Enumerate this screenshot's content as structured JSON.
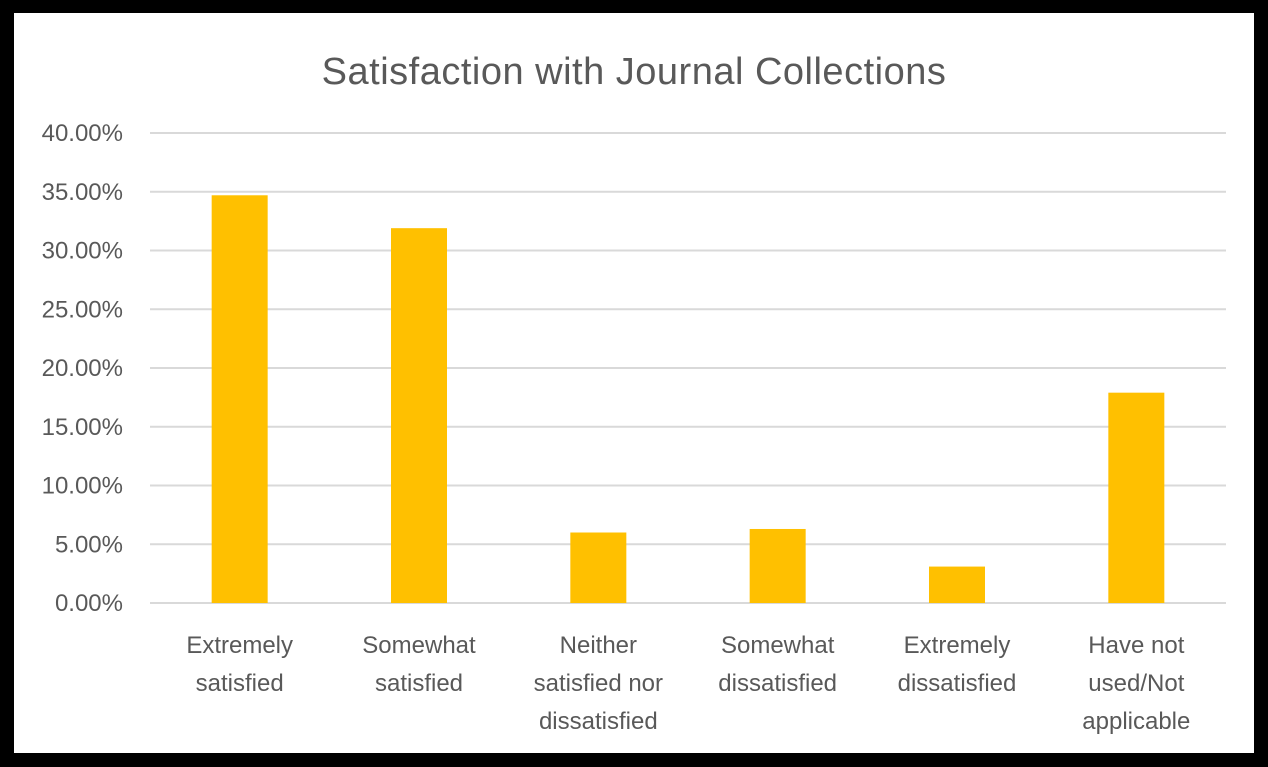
{
  "chart_data": {
    "type": "bar",
    "title": "Satisfaction with Journal Collections",
    "xlabel": "",
    "ylabel": "",
    "ylim": [
      0,
      0.4
    ],
    "yticks": [
      0,
      0.05,
      0.1,
      0.15,
      0.2,
      0.25,
      0.3,
      0.35,
      0.4
    ],
    "ytick_labels": [
      "0.00%",
      "5.00%",
      "10.00%",
      "15.00%",
      "20.00%",
      "25.00%",
      "30.00%",
      "35.00%",
      "40.00%"
    ],
    "grid": true,
    "legend": "none",
    "bar_color": "#FFC000",
    "categories": [
      [
        "Extremely",
        "satisfied"
      ],
      [
        "Somewhat",
        "satisfied"
      ],
      [
        "Neither",
        "satisfied nor",
        "dissatisfied"
      ],
      [
        "Somewhat",
        "dissatisfied"
      ],
      [
        "Extremely",
        "dissatisfied"
      ],
      [
        "Have not",
        "used/Not",
        "applicable"
      ]
    ],
    "values": [
      0.347,
      0.319,
      0.06,
      0.063,
      0.031,
      0.179
    ]
  }
}
